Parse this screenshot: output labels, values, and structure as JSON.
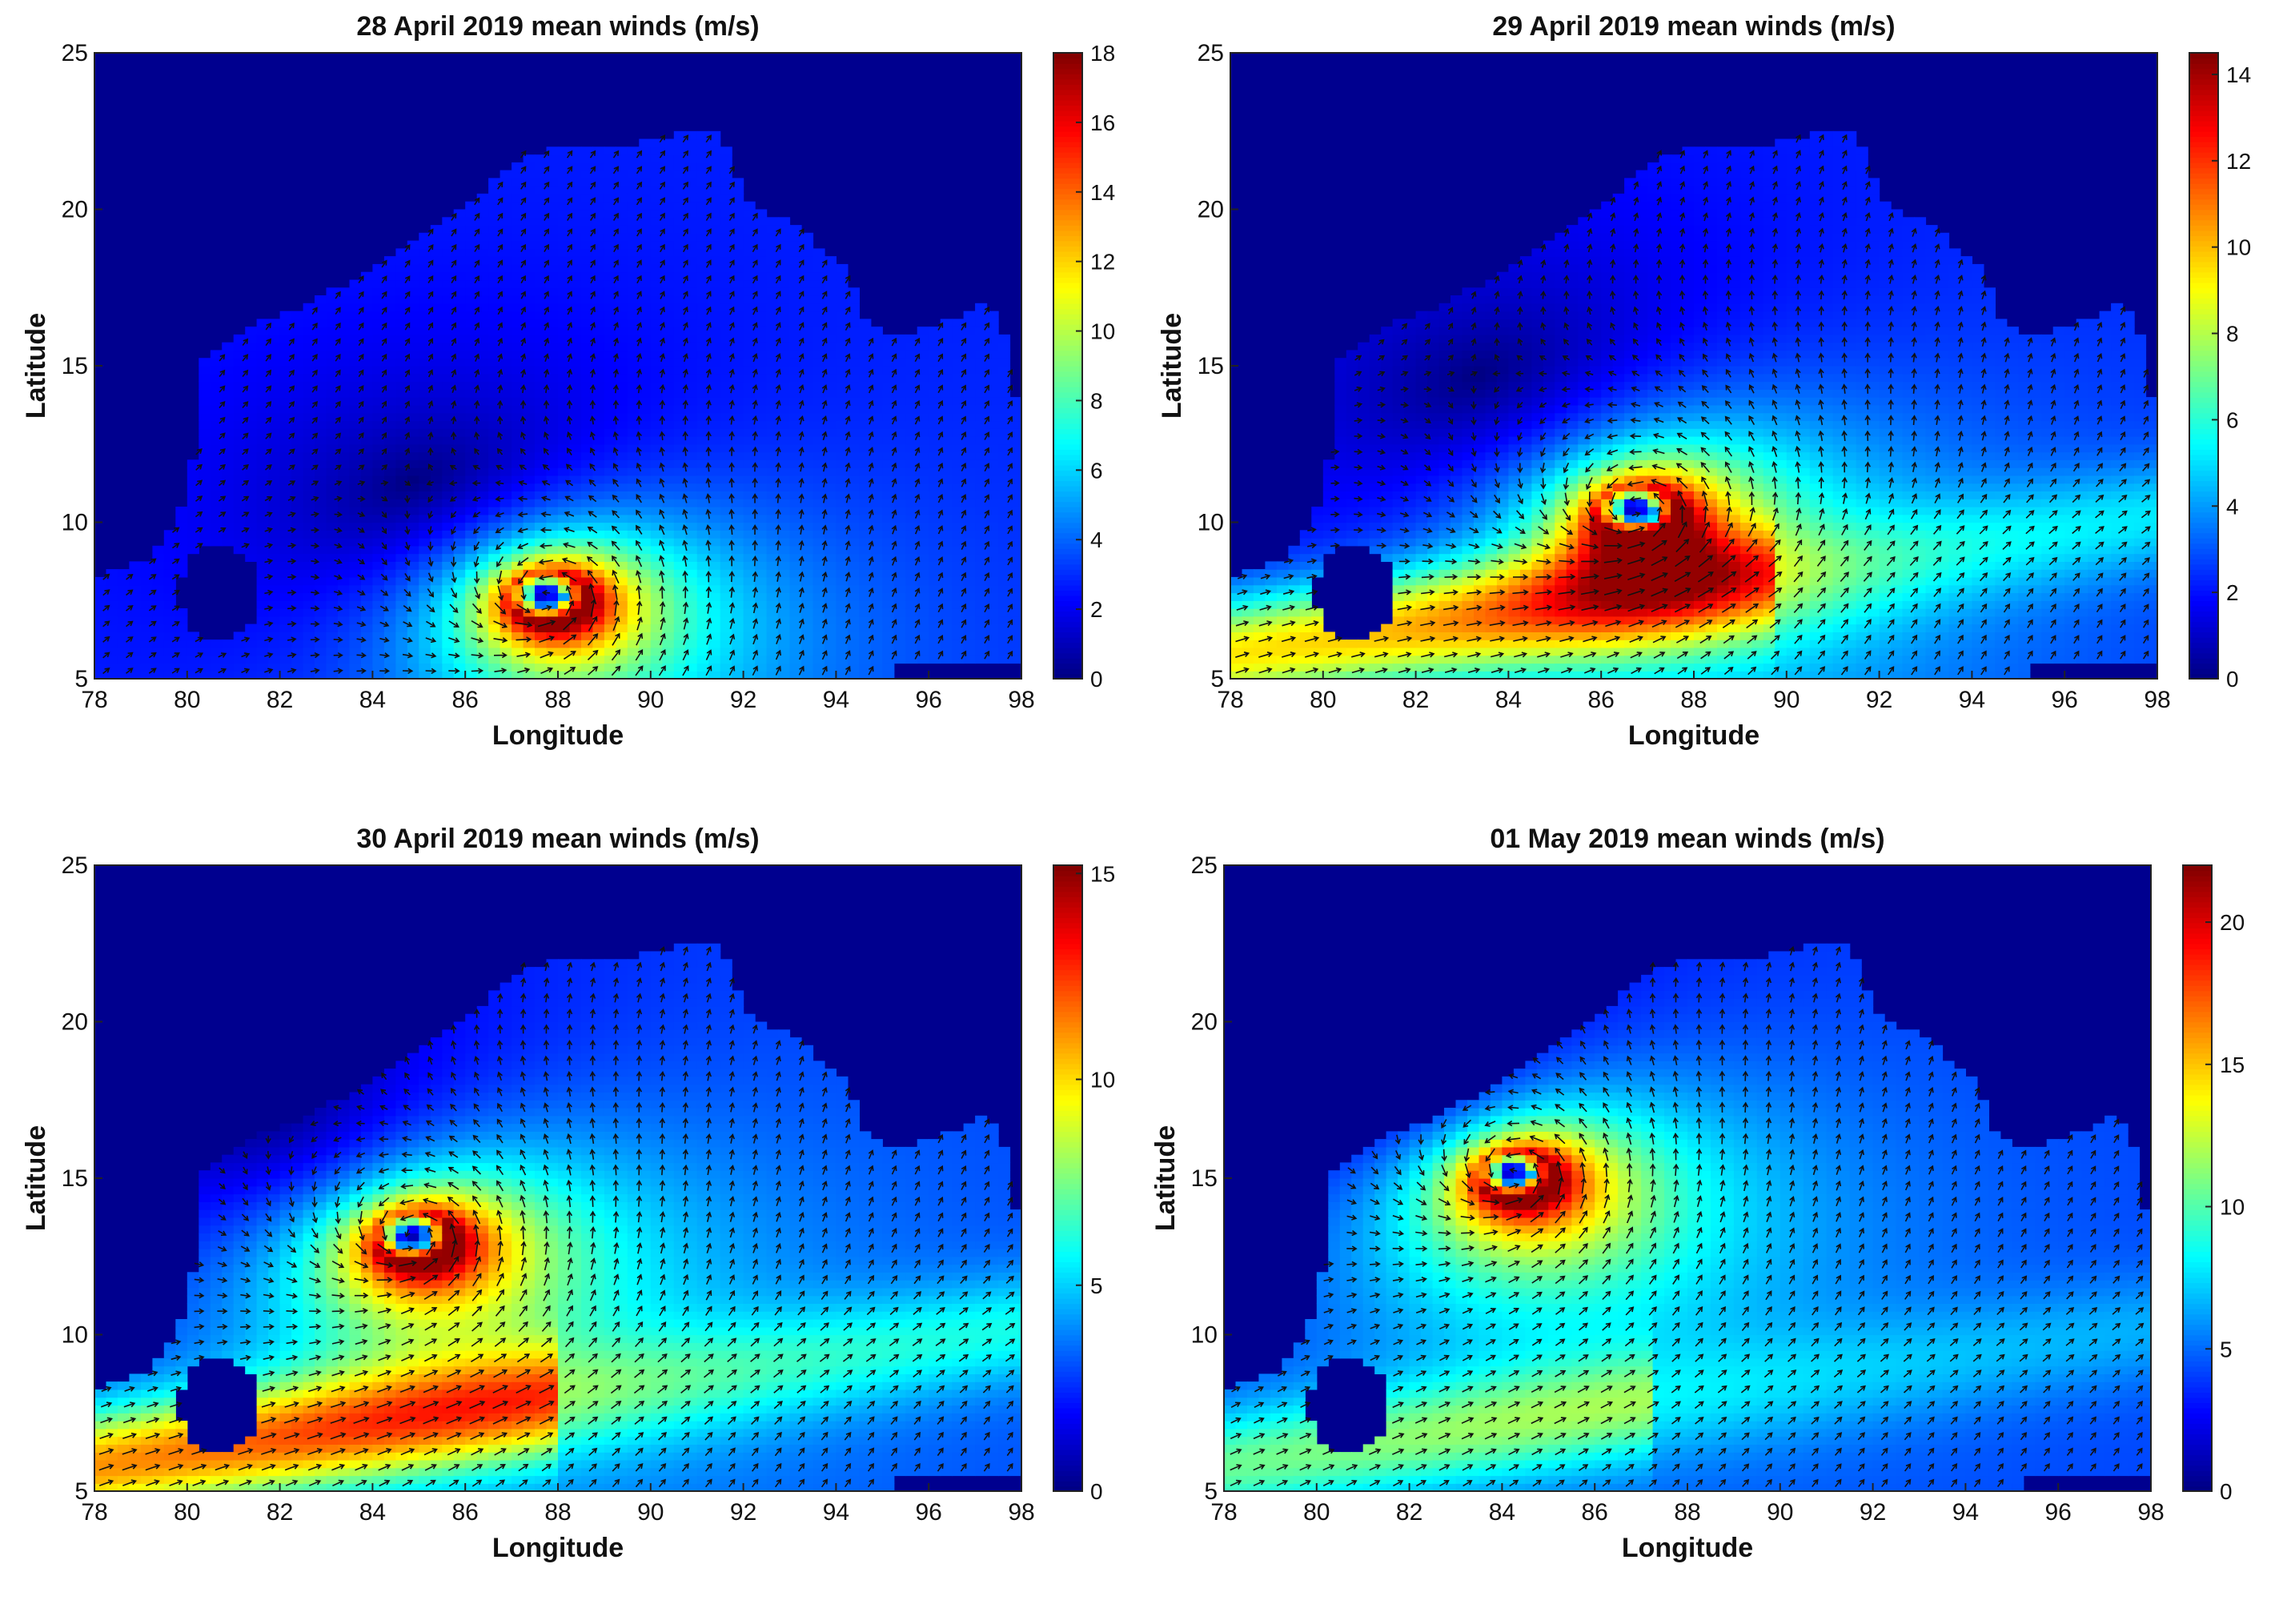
{
  "chart_data": [
    {
      "type": "heatmap",
      "subtype": "wind-speed field with vector arrows",
      "title": "28 April 2019 mean winds (m/s)",
      "xlabel": "Longitude",
      "ylabel": "Latitude",
      "xlim": [
        78,
        98
      ],
      "ylim": [
        5,
        25
      ],
      "xticks": [
        "78",
        "80",
        "82",
        "84",
        "86",
        "88",
        "90",
        "92",
        "94",
        "96",
        "98"
      ],
      "yticks": [
        "5",
        "10",
        "15",
        "20",
        "25"
      ],
      "colorbar": {
        "range": [
          0,
          18
        ],
        "ticks": [
          "0",
          "2",
          "4",
          "6",
          "8",
          "10",
          "12",
          "14",
          "16",
          "18"
        ]
      },
      "cyclone_center": {
        "lon": 87.8,
        "lat": 7.6
      },
      "peak_speed": 17,
      "colormap": "jet"
    },
    {
      "type": "heatmap",
      "subtype": "wind-speed field with vector arrows",
      "title": "29 April 2019 mean winds (m/s)",
      "xlabel": "Longitude",
      "ylabel": "Latitude",
      "xlim": [
        78,
        98
      ],
      "ylim": [
        5,
        25
      ],
      "xticks": [
        "78",
        "80",
        "82",
        "84",
        "86",
        "88",
        "90",
        "92",
        "94",
        "96",
        "98"
      ],
      "yticks": [
        "5",
        "10",
        "15",
        "20",
        "25"
      ],
      "colorbar": {
        "range": [
          0,
          14.5
        ],
        "ticks": [
          "0",
          "2",
          "4",
          "6",
          "8",
          "10",
          "12",
          "14"
        ]
      },
      "cyclone_center": {
        "lon": 86.8,
        "lat": 10.3
      },
      "peak_speed": 14,
      "colormap": "jet"
    },
    {
      "type": "heatmap",
      "subtype": "wind-speed field with vector arrows",
      "title": "30 April 2019 mean winds (m/s)",
      "xlabel": "Longitude",
      "ylabel": "Latitude",
      "xlim": [
        78,
        98
      ],
      "ylim": [
        5,
        25
      ],
      "xticks": [
        "78",
        "80",
        "82",
        "84",
        "86",
        "88",
        "90",
        "92",
        "94",
        "96",
        "98"
      ],
      "yticks": [
        "5",
        "10",
        "15",
        "20",
        "25"
      ],
      "colorbar": {
        "range": [
          0,
          15.2
        ],
        "ticks": [
          "0",
          "5",
          "10",
          "15"
        ]
      },
      "cyclone_center": {
        "lon": 84.9,
        "lat": 13.1
      },
      "peak_speed": 14.5,
      "colormap": "jet"
    },
    {
      "type": "heatmap",
      "subtype": "wind-speed field with vector arrows",
      "title": "01 May 2019 mean winds (m/s)",
      "xlabel": "Longitude",
      "ylabel": "Latitude",
      "xlim": [
        78,
        98
      ],
      "ylim": [
        5,
        25
      ],
      "xticks": [
        "78",
        "80",
        "82",
        "84",
        "86",
        "88",
        "90",
        "92",
        "94",
        "96",
        "98"
      ],
      "yticks": [
        "5",
        "10",
        "15",
        "20",
        "25"
      ],
      "colorbar": {
        "range": [
          0,
          22
        ],
        "ticks": [
          "0",
          "5",
          "10",
          "15",
          "20"
        ]
      },
      "cyclone_center": {
        "lon": 84.3,
        "lat": 15.1
      },
      "peak_speed": 21,
      "colormap": "jet"
    }
  ]
}
